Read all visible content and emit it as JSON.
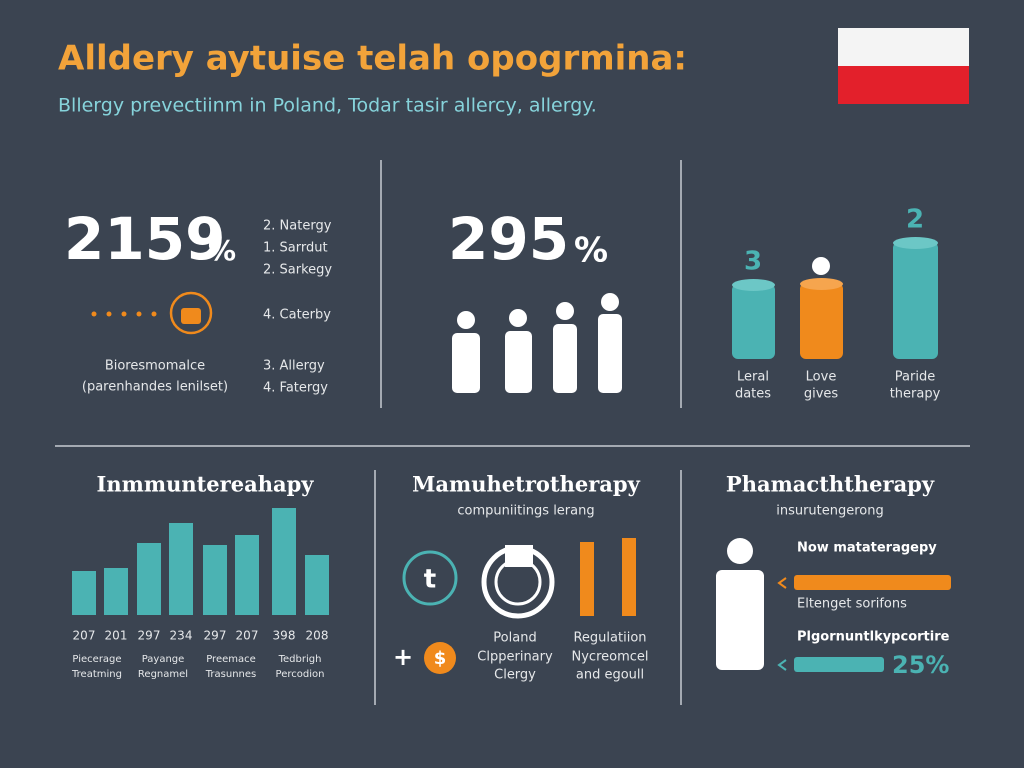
{
  "header": {
    "title": "Alldery aytuise telah opogrmina:",
    "subtitle": "Bllergy prevectiinm in Poland, Todar tasir allercy, allergy."
  },
  "panel1": {
    "stat": "2159",
    "unit": "%",
    "list": [
      "2. Natergy",
      "1. Sarrdut",
      "2. Sarkegy",
      "4. Caterby",
      "3. Allergy",
      "4. Fatergy"
    ],
    "caption": [
      "Bioresmomalce",
      "(parenhandes lenilset)"
    ]
  },
  "panel2": {
    "stat": "295",
    "unit": "%"
  },
  "panel3": {
    "tops": [
      "3",
      "2"
    ],
    "labels": [
      [
        "Leral",
        "dates"
      ],
      [
        "Love",
        "gives"
      ],
      [
        "Paride",
        "therapy"
      ]
    ]
  },
  "panel4": {
    "heading": "Inmmuntereahapy",
    "numbers": [
      "207",
      "201",
      "297",
      "234",
      "297",
      "207",
      "398",
      "208"
    ],
    "labels": [
      [
        "Piecerage",
        "Treatming"
      ],
      [
        "Payange",
        "Regnamel"
      ],
      [
        "Preemace",
        "Trasunnes"
      ],
      [
        "Tedbrigh",
        "Percodion"
      ]
    ]
  },
  "panel5": {
    "heading": "Mamuhetrotherapy",
    "subheading": "compuniitings lerang",
    "icon_letter": "t",
    "plus": "+",
    "currency": "$",
    "labels": [
      [
        "Poland",
        "Clpperinary",
        "Clergy"
      ],
      [
        "Regulatiion",
        "Nycreomcel",
        "and egoull"
      ]
    ]
  },
  "panel6": {
    "heading": "Phamacththerapy",
    "subheading": "insurutengerong",
    "items": [
      "Now matateragepy",
      "Eltenget sorifons",
      "Plgornuntlkypcortire"
    ],
    "stat": "25%"
  }
}
